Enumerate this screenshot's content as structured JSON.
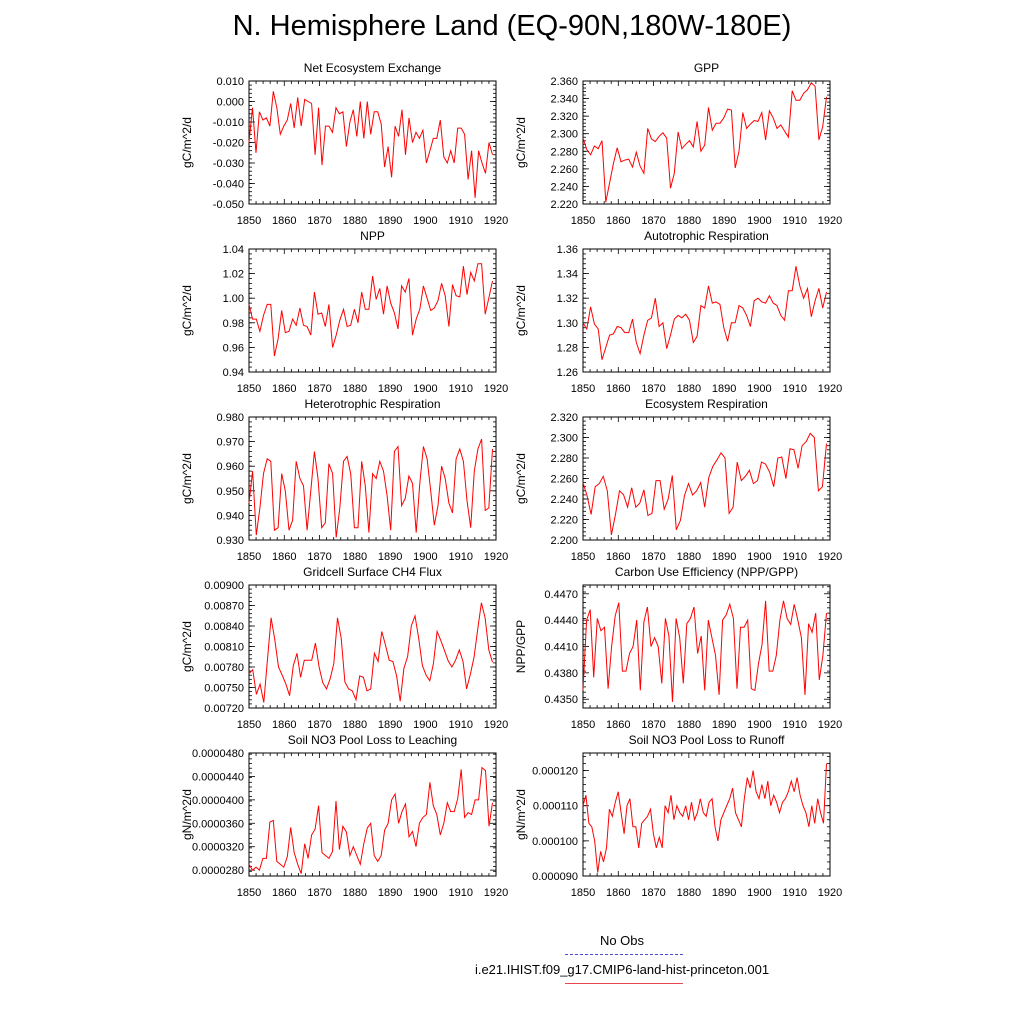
{
  "title": "N. Hemisphere Land (EQ-90N,180W-180E)",
  "legend": {
    "no_obs": "No Obs",
    "case": "i.e21.IHIST.f09_g17.CMIP6-land-hist-princeton.001"
  },
  "colors": {
    "series": "#ff0000",
    "no_obs_line": "#4b4bd6",
    "case_line": "#e8464f"
  },
  "chart_data": [
    {
      "type": "line",
      "title": "Net Ecosystem Exchange",
      "ylabel": "gC/m^2/d",
      "xlim": [
        1850,
        1920
      ],
      "ylim": [
        -0.05,
        0.01
      ],
      "xticks": [
        "1850",
        "1860",
        "1870",
        "1880",
        "1890",
        "1900",
        "1910",
        "1920"
      ],
      "yticks": [
        "0.010",
        "0.000",
        "-0.010",
        "-0.020",
        "-0.030",
        "-0.040",
        "-0.050"
      ],
      "x_start": 1850,
      "values": [
        -0.02,
        -0.003,
        -0.025,
        -0.005,
        -0.009,
        -0.008,
        -0.012,
        0.005,
        -0.003,
        -0.016,
        -0.012,
        -0.009,
        -0.001,
        -0.013,
        0.002,
        -0.012,
        0.001,
        0.0,
        -0.001,
        -0.026,
        -0.003,
        -0.031,
        -0.012,
        -0.012,
        -0.015,
        -0.003,
        -0.006,
        -0.005,
        -0.022,
        -0.01,
        -0.004,
        -0.017,
        0.0,
        -0.018,
        0.0,
        -0.016,
        -0.005,
        -0.005,
        -0.011,
        -0.032,
        -0.022,
        -0.037,
        -0.012,
        -0.017,
        -0.004,
        -0.026,
        -0.008,
        -0.02,
        -0.015,
        -0.018,
        -0.014,
        -0.03,
        -0.024,
        -0.018,
        -0.018,
        -0.009,
        -0.027,
        -0.03,
        -0.024,
        -0.03,
        -0.013,
        -0.013,
        -0.016,
        -0.038,
        -0.024,
        -0.047,
        -0.024,
        -0.03,
        -0.035,
        -0.02,
        -0.026
      ]
    },
    {
      "type": "line",
      "title": "GPP",
      "ylabel": "gC/m^2/d",
      "xlim": [
        1850,
        1920
      ],
      "ylim": [
        2.22,
        2.36
      ],
      "xticks": [
        "1850",
        "1860",
        "1870",
        "1880",
        "1890",
        "1900",
        "1910",
        "1920"
      ],
      "yticks": [
        "2.360",
        "2.340",
        "2.320",
        "2.300",
        "2.280",
        "2.260",
        "2.240",
        "2.220"
      ],
      "x_start": 1850,
      "values": [
        2.295,
        2.282,
        2.276,
        2.286,
        2.283,
        2.292,
        2.222,
        2.244,
        2.266,
        2.284,
        2.268,
        2.27,
        2.271,
        2.262,
        2.279,
        2.263,
        2.255,
        2.306,
        2.294,
        2.291,
        2.297,
        2.301,
        2.295,
        2.238,
        2.255,
        2.302,
        2.283,
        2.288,
        2.292,
        2.285,
        2.314,
        2.28,
        2.287,
        2.33,
        2.304,
        2.312,
        2.312,
        2.318,
        2.328,
        2.327,
        2.261,
        2.28,
        2.324,
        2.306,
        2.311,
        2.315,
        2.314,
        2.324,
        2.293,
        2.326,
        2.318,
        2.306,
        2.31,
        2.303,
        2.296,
        2.349,
        2.338,
        2.338,
        2.346,
        2.35,
        2.358,
        2.354,
        2.293,
        2.308,
        2.342
      ]
    },
    {
      "type": "line",
      "title": "NPP",
      "ylabel": "gC/m^2/d",
      "xlim": [
        1850,
        1920
      ],
      "ylim": [
        0.94,
        1.04
      ],
      "xticks": [
        "1850",
        "1860",
        "1870",
        "1880",
        "1890",
        "1900",
        "1910",
        "1920"
      ],
      "yticks": [
        "1.04",
        "1.02",
        "1.00",
        "0.98",
        "0.96",
        "0.94"
      ],
      "x_start": 1850,
      "values": [
        0.995,
        0.983,
        0.983,
        0.973,
        0.986,
        0.995,
        0.995,
        0.953,
        0.967,
        0.99,
        0.972,
        0.973,
        0.983,
        0.978,
        0.992,
        0.978,
        0.977,
        0.97,
        1.005,
        0.987,
        0.988,
        0.977,
        0.995,
        0.96,
        0.97,
        0.982,
        0.991,
        0.977,
        0.978,
        0.991,
        0.98,
        1.005,
        0.991,
        0.991,
        1.018,
        0.999,
        1.008,
        0.987,
        1.01,
        0.996,
        0.988,
        0.975,
        1.01,
        1.005,
        1.016,
        0.97,
        0.983,
        0.991,
        1.01,
        1.0,
        0.99,
        0.992,
        0.998,
        1.012,
        1.002,
        0.977,
        1.011,
        1.002,
        1.001,
        1.026,
        1.003,
        1.021,
        1.014,
        1.028,
        1.028,
        0.987,
        1.0,
        1.014
      ]
    },
    {
      "type": "line",
      "title": "Autotrophic Respiration",
      "ylabel": "gC/m^2/d",
      "xlim": [
        1850,
        1920
      ],
      "ylim": [
        1.26,
        1.36
      ],
      "xticks": [
        "1850",
        "1860",
        "1870",
        "1880",
        "1890",
        "1900",
        "1910",
        "1920"
      ],
      "yticks": [
        "1.36",
        "1.34",
        "1.32",
        "1.30",
        "1.28",
        "1.26"
      ],
      "x_start": 1850,
      "values": [
        1.3,
        1.295,
        1.313,
        1.299,
        1.295,
        1.27,
        1.28,
        1.29,
        1.291,
        1.297,
        1.296,
        1.292,
        1.292,
        1.303,
        1.284,
        1.275,
        1.29,
        1.302,
        1.304,
        1.32,
        1.297,
        1.3,
        1.279,
        1.29,
        1.303,
        1.306,
        1.304,
        1.307,
        1.302,
        1.284,
        1.289,
        1.314,
        1.312,
        1.33,
        1.316,
        1.317,
        1.315,
        1.296,
        1.285,
        1.3,
        1.3,
        1.314,
        1.312,
        1.306,
        1.297,
        1.318,
        1.32,
        1.317,
        1.316,
        1.322,
        1.316,
        1.314,
        1.306,
        1.302,
        1.326,
        1.326,
        1.346,
        1.33,
        1.32,
        1.328,
        1.305,
        1.318,
        1.328,
        1.312,
        1.325
      ]
    },
    {
      "type": "line",
      "title": "Heterotrophic Respiration",
      "ylabel": "gC/m^2/d",
      "xlim": [
        1850,
        1920
      ],
      "ylim": [
        0.93,
        0.98
      ],
      "xticks": [
        "1850",
        "1860",
        "1870",
        "1880",
        "1890",
        "1900",
        "1910",
        "1920"
      ],
      "yticks": [
        "0.980",
        "0.970",
        "0.960",
        "0.950",
        "0.940",
        "0.930"
      ],
      "x_start": 1850,
      "values": [
        0.945,
        0.958,
        0.932,
        0.943,
        0.957,
        0.963,
        0.962,
        0.934,
        0.935,
        0.957,
        0.95,
        0.934,
        0.938,
        0.962,
        0.955,
        0.952,
        0.934,
        0.95,
        0.966,
        0.955,
        0.935,
        0.937,
        0.961,
        0.957,
        0.931,
        0.943,
        0.962,
        0.964,
        0.957,
        0.935,
        0.935,
        0.962,
        0.952,
        0.933,
        0.957,
        0.955,
        0.962,
        0.958,
        0.948,
        0.934,
        0.966,
        0.968,
        0.944,
        0.947,
        0.956,
        0.953,
        0.933,
        0.953,
        0.968,
        0.963,
        0.95,
        0.936,
        0.944,
        0.96,
        0.955,
        0.945,
        0.941,
        0.963,
        0.967,
        0.962,
        0.946,
        0.935,
        0.958,
        0.967,
        0.971,
        0.942,
        0.943,
        0.967
      ]
    },
    {
      "type": "line",
      "title": "Ecosystem Respiration",
      "ylabel": "gC/m^2/d",
      "xlim": [
        1850,
        1920
      ],
      "ylim": [
        2.2,
        2.32
      ],
      "xticks": [
        "1850",
        "1860",
        "1870",
        "1880",
        "1890",
        "1900",
        "1910",
        "1920"
      ],
      "yticks": [
        "2.320",
        "2.300",
        "2.280",
        "2.260",
        "2.240",
        "2.220",
        "2.200"
      ],
      "x_start": 1850,
      "values": [
        2.256,
        2.243,
        2.225,
        2.252,
        2.255,
        2.262,
        2.248,
        2.205,
        2.225,
        2.248,
        2.244,
        2.232,
        2.251,
        2.232,
        2.236,
        2.249,
        2.224,
        2.226,
        2.258,
        2.258,
        2.23,
        2.24,
        2.263,
        2.21,
        2.219,
        2.243,
        2.255,
        2.244,
        2.248,
        2.256,
        2.232,
        2.261,
        2.272,
        2.278,
        2.285,
        2.28,
        2.226,
        2.232,
        2.276,
        2.258,
        2.262,
        2.268,
        2.255,
        2.258,
        2.276,
        2.274,
        2.266,
        2.252,
        2.28,
        2.281,
        2.26,
        2.289,
        2.288,
        2.27,
        2.292,
        2.296,
        2.304,
        2.3,
        2.248,
        2.252,
        2.294
      ]
    },
    {
      "type": "line",
      "title": "Gridcell Surface CH4 Flux",
      "ylabel": "gC/m^2/d",
      "xlim": [
        1850,
        1920
      ],
      "ylim": [
        0.0072,
        0.009
      ],
      "xticks": [
        "1850",
        "1860",
        "1870",
        "1880",
        "1890",
        "1900",
        "1910",
        "1920"
      ],
      "yticks": [
        "0.00900",
        "0.00870",
        "0.00840",
        "0.00810",
        "0.00780",
        "0.00750",
        "0.00720"
      ],
      "x_start": 1850,
      "values": [
        0.0077,
        0.00776,
        0.0074,
        0.00755,
        0.00728,
        0.0079,
        0.00852,
        0.0082,
        0.0078,
        0.00768,
        0.00755,
        0.00738,
        0.00782,
        0.008,
        0.00765,
        0.0079,
        0.0079,
        0.0079,
        0.00815,
        0.0078,
        0.00757,
        0.00748,
        0.00763,
        0.00785,
        0.00852,
        0.00822,
        0.00758,
        0.00748,
        0.00745,
        0.00732,
        0.00767,
        0.00765,
        0.00745,
        0.00748,
        0.008,
        0.00788,
        0.00832,
        0.00812,
        0.0079,
        0.00788,
        0.00767,
        0.0073,
        0.00778,
        0.00795,
        0.0084,
        0.00855,
        0.00822,
        0.00782,
        0.00768,
        0.0076,
        0.00785,
        0.00832,
        0.00819,
        0.00804,
        0.00789,
        0.0078,
        0.0079,
        0.00805,
        0.00788,
        0.00748,
        0.00769,
        0.00794,
        0.00835,
        0.00874,
        0.00852,
        0.00805,
        0.00787
      ]
    },
    {
      "type": "line",
      "title": "Carbon Use Efficiency (NPP/GPP)",
      "ylabel": "NPP/GPP",
      "xlim": [
        1850,
        1920
      ],
      "ylim": [
        0.434,
        0.448
      ],
      "xticks": [
        "1850",
        "1860",
        "1870",
        "1880",
        "1890",
        "1900",
        "1910",
        "1920"
      ],
      "yticks": [
        "0.4470",
        "0.4440",
        "0.4410",
        "0.4380",
        "0.4350"
      ],
      "x_start": 1850,
      "values": [
        0.436,
        0.444,
        0.4452,
        0.4375,
        0.4442,
        0.4428,
        0.4432,
        0.4362,
        0.441,
        0.4445,
        0.446,
        0.4382,
        0.4382,
        0.4402,
        0.441,
        0.444,
        0.436,
        0.4438,
        0.4455,
        0.441,
        0.442,
        0.441,
        0.4368,
        0.4442,
        0.4422,
        0.4347,
        0.4442,
        0.442,
        0.4368,
        0.4436,
        0.4442,
        0.4455,
        0.4402,
        0.4422,
        0.436,
        0.444,
        0.442,
        0.44,
        0.4355,
        0.444,
        0.4446,
        0.4458,
        0.4442,
        0.4362,
        0.4432,
        0.4432,
        0.444,
        0.4362,
        0.436,
        0.439,
        0.4412,
        0.4462,
        0.4382,
        0.4382,
        0.44,
        0.444,
        0.4462,
        0.4442,
        0.4435,
        0.4458,
        0.444,
        0.442,
        0.4355,
        0.4436,
        0.4426,
        0.4448,
        0.4372,
        0.44,
        0.4448
      ]
    },
    {
      "type": "line",
      "title": "Soil NO3 Pool Loss to Leaching",
      "ylabel": "gN/m^2/d",
      "xlim": [
        1850,
        1920
      ],
      "ylim": [
        2.7e-05,
        4.8e-05
      ],
      "xticks": [
        "1850",
        "1860",
        "1870",
        "1880",
        "1890",
        "1900",
        "1910",
        "1920"
      ],
      "yticks": [
        "0.0000480",
        "0.0000440",
        "0.0000400",
        "0.0000360",
        "0.0000320",
        "0.0000280"
      ],
      "x_start": 1850,
      "values": [
        2.9e-05,
        2.8e-05,
        2.85e-05,
        2.8e-05,
        3e-05,
        3e-05,
        3.62e-05,
        3.65e-05,
        2.95e-05,
        2.9e-05,
        2.85e-05,
        3.03e-05,
        3.53e-05,
        3.1e-05,
        2.9e-05,
        2.74e-05,
        3.25e-05,
        3e-05,
        3.4e-05,
        3.5e-05,
        3.9e-05,
        3.1e-05,
        3.05e-05,
        3e-05,
        3.12e-05,
        3.98e-05,
        3.15e-05,
        3.55e-05,
        3.45e-05,
        3.05e-05,
        3.2e-05,
        3.05e-05,
        2.9e-05,
        3.25e-05,
        3.52e-05,
        3.6e-05,
        3.05e-05,
        2.95e-05,
        3.05e-05,
        3.48e-05,
        3.6e-05,
        4e-05,
        4.1e-05,
        3.6e-05,
        3.8e-05,
        3.93e-05,
        3.37e-05,
        3.46e-05,
        3.2e-05,
        3.6e-05,
        3.7e-05,
        3.75e-05,
        4.3e-05,
        3.9e-05,
        3.75e-05,
        3.4e-05,
        3.6e-05,
        3.95e-05,
        3.8e-05,
        3.8e-05,
        4.02e-05,
        4.52e-05,
        3.7e-05,
        3.78e-05,
        3.75e-05,
        4e-05,
        4e-05,
        4.55e-05,
        4.5e-05,
        3.55e-05,
        3.95e-05
      ]
    },
    {
      "type": "line",
      "title": "Soil NO3 Pool Loss to Runoff",
      "ylabel": "gN/m^2/d",
      "xlim": [
        1850,
        1920
      ],
      "ylim": [
        9e-05,
        0.000125
      ],
      "xticks": [
        "1850",
        "1860",
        "1870",
        "1880",
        "1890",
        "1900",
        "1910",
        "1920"
      ],
      "yticks": [
        "0.000120",
        "0.000110",
        "0.000100",
        "0.000090"
      ],
      "x_start": 1850,
      "values": [
        0.00011,
        0.000113,
        0.000105,
        0.000104,
        0.0001,
        9.1e-05,
        9.7e-05,
        9.4e-05,
        9.8e-05,
        0.000109,
        0.000107,
        0.000111,
        0.000114,
        0.000108,
        0.000102,
        0.00011,
        0.000112,
        0.000104,
        0.000104,
        9.8e-05,
        0.000105,
        0.000106,
        0.000107,
        0.000109,
        0.000102,
        9.8e-05,
        0.000101,
        9.8e-05,
        0.00011,
        0.000108,
        0.000113,
        0.000106,
        0.00011,
        0.000108,
        0.000107,
        0.00011,
        0.000106,
        0.000111,
        0.000106,
        0.000108,
        0.000112,
        0.000108,
        0.000107,
        0.000111,
        0.000112,
        0.000104,
        0.0001,
        0.000106,
        0.000108,
        0.00011,
        0.000112,
        0.000115,
        0.000108,
        0.000106,
        0.000104,
        0.000112,
        0.000118,
        0.000115,
        0.00012,
        0.000114,
        0.000112,
        0.000116,
        0.000112,
        0.000117,
        0.00011,
        0.000113,
        0.000111,
        0.000108,
        0.000111,
        0.000112,
        0.000114,
        0.000117,
        0.000114,
        0.000118,
        0.000113,
        0.00011,
        0.000108,
        0.000104,
        0.00011,
        0.000105,
        0.000112,
        0.000108,
        0.000105,
        0.000122
      ]
    }
  ]
}
